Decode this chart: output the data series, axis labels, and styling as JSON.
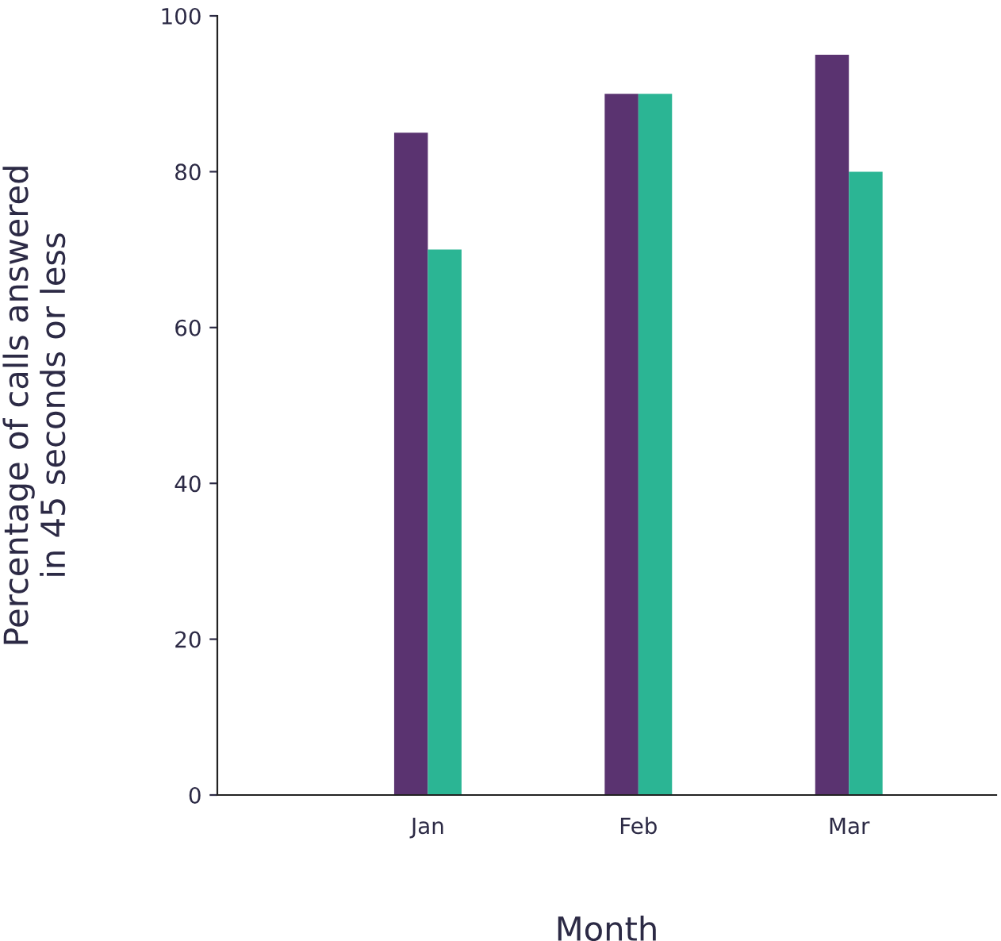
{
  "chart_data": {
    "type": "bar",
    "xlabel": "Month",
    "ylabel": "Percentage of calls answered\nin 45 seconds or less",
    "categories": [
      "Jan",
      "Feb",
      "Mar"
    ],
    "series": [
      {
        "color": "#5a3370",
        "values": [
          85,
          90,
          95
        ]
      },
      {
        "color": "#2bb594",
        "values": [
          70,
          90,
          80
        ]
      }
    ],
    "ylim": [
      0,
      100
    ],
    "yticks": [
      0,
      20,
      40,
      60,
      80,
      100
    ],
    "grid": false,
    "legend": false
  }
}
